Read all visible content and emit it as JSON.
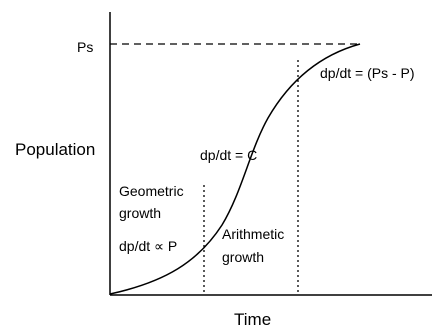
{
  "axes": {
    "y_label": "Population",
    "x_label": "Time"
  },
  "saturation_label": "Ps",
  "phases": [
    {
      "name_lines": [
        "Geometric",
        "growth"
      ],
      "equation": "dp/dt ∝ P"
    },
    {
      "name_lines": [
        "Arithmetic",
        "growth"
      ],
      "equation": "dp/dt = C"
    },
    {
      "equation": "dp/dt = (Ps - P)"
    }
  ]
}
